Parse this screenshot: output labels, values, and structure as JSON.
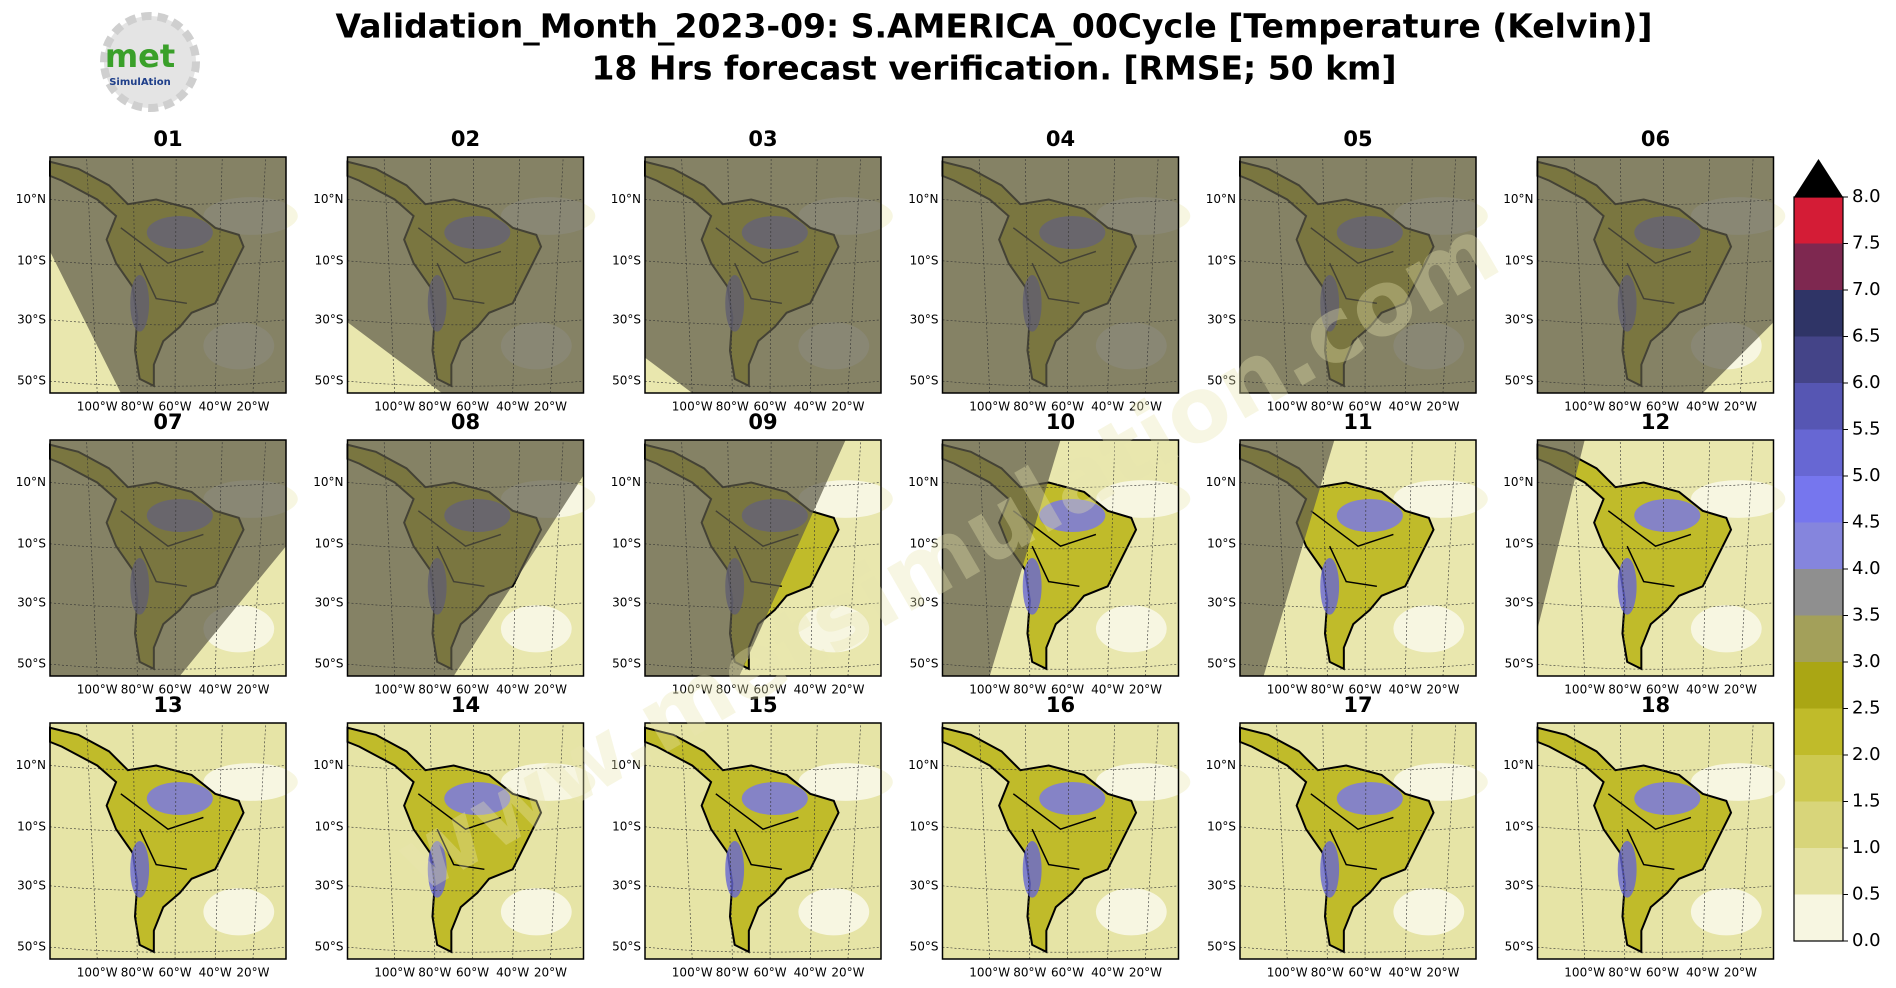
{
  "header": {
    "title_line1": "Validation_Month_2023-09: S.AMERICA_00Cycle [Temperature (Kelvin)]",
    "title_line2": "18 Hrs forecast verification.  [RMSE; 50 km]"
  },
  "logo": {
    "text": "met",
    "subtext": "SimulAtion"
  },
  "watermark": "www.metsimulation.com",
  "panels": [
    {
      "label": "01"
    },
    {
      "label": "02"
    },
    {
      "label": "03"
    },
    {
      "label": "04"
    },
    {
      "label": "05"
    },
    {
      "label": "06"
    },
    {
      "label": "07"
    },
    {
      "label": "08"
    },
    {
      "label": "09"
    },
    {
      "label": "10"
    },
    {
      "label": "11"
    },
    {
      "label": "12"
    },
    {
      "label": "13"
    },
    {
      "label": "14"
    },
    {
      "label": "15"
    },
    {
      "label": "16"
    },
    {
      "label": "17"
    },
    {
      "label": "18"
    }
  ],
  "lat_labels": [
    "10°N",
    "10°S",
    "30°S",
    "50°S"
  ],
  "lon_labels": [
    "100°W",
    "80°W",
    "60°W",
    "40°W",
    "20°W"
  ],
  "colorbar": {
    "ticks": [
      {
        "value": 0,
        "label": "0.0"
      },
      {
        "value": 0.5,
        "label": "0.5"
      },
      {
        "value": 1,
        "label": "1.0"
      },
      {
        "value": 1.5,
        "label": "1.5"
      },
      {
        "value": 2,
        "label": "2.0"
      },
      {
        "value": 2.5,
        "label": "2.5"
      },
      {
        "value": 3,
        "label": "3.0"
      },
      {
        "value": 3.5,
        "label": "3.5"
      },
      {
        "value": 4,
        "label": "4.0"
      },
      {
        "value": 4.5,
        "label": "4.5"
      },
      {
        "value": 5,
        "label": "5.0"
      },
      {
        "value": 5.5,
        "label": "5.5"
      },
      {
        "value": 6,
        "label": "6.0"
      },
      {
        "value": 6.5,
        "label": "6.5"
      },
      {
        "value": 7,
        "label": "7.0"
      },
      {
        "value": 7.5,
        "label": "7.5"
      },
      {
        "value": 8,
        "label": "8.0"
      }
    ],
    "lim": [
      0,
      8
    ],
    "colors": [
      "#f7f6e1",
      "#e4e2a2",
      "#d8d57a",
      "#cdc950",
      "#c0bb2a",
      "#aaa614",
      "#a3a05a",
      "#8f8f8f",
      "#8585dd",
      "#7676ee",
      "#6767d3",
      "#5656b3",
      "#444488",
      "#2f3466",
      "#7e2850",
      "#d41c36",
      "#850e16"
    ],
    "over_color": "#000000"
  }
}
